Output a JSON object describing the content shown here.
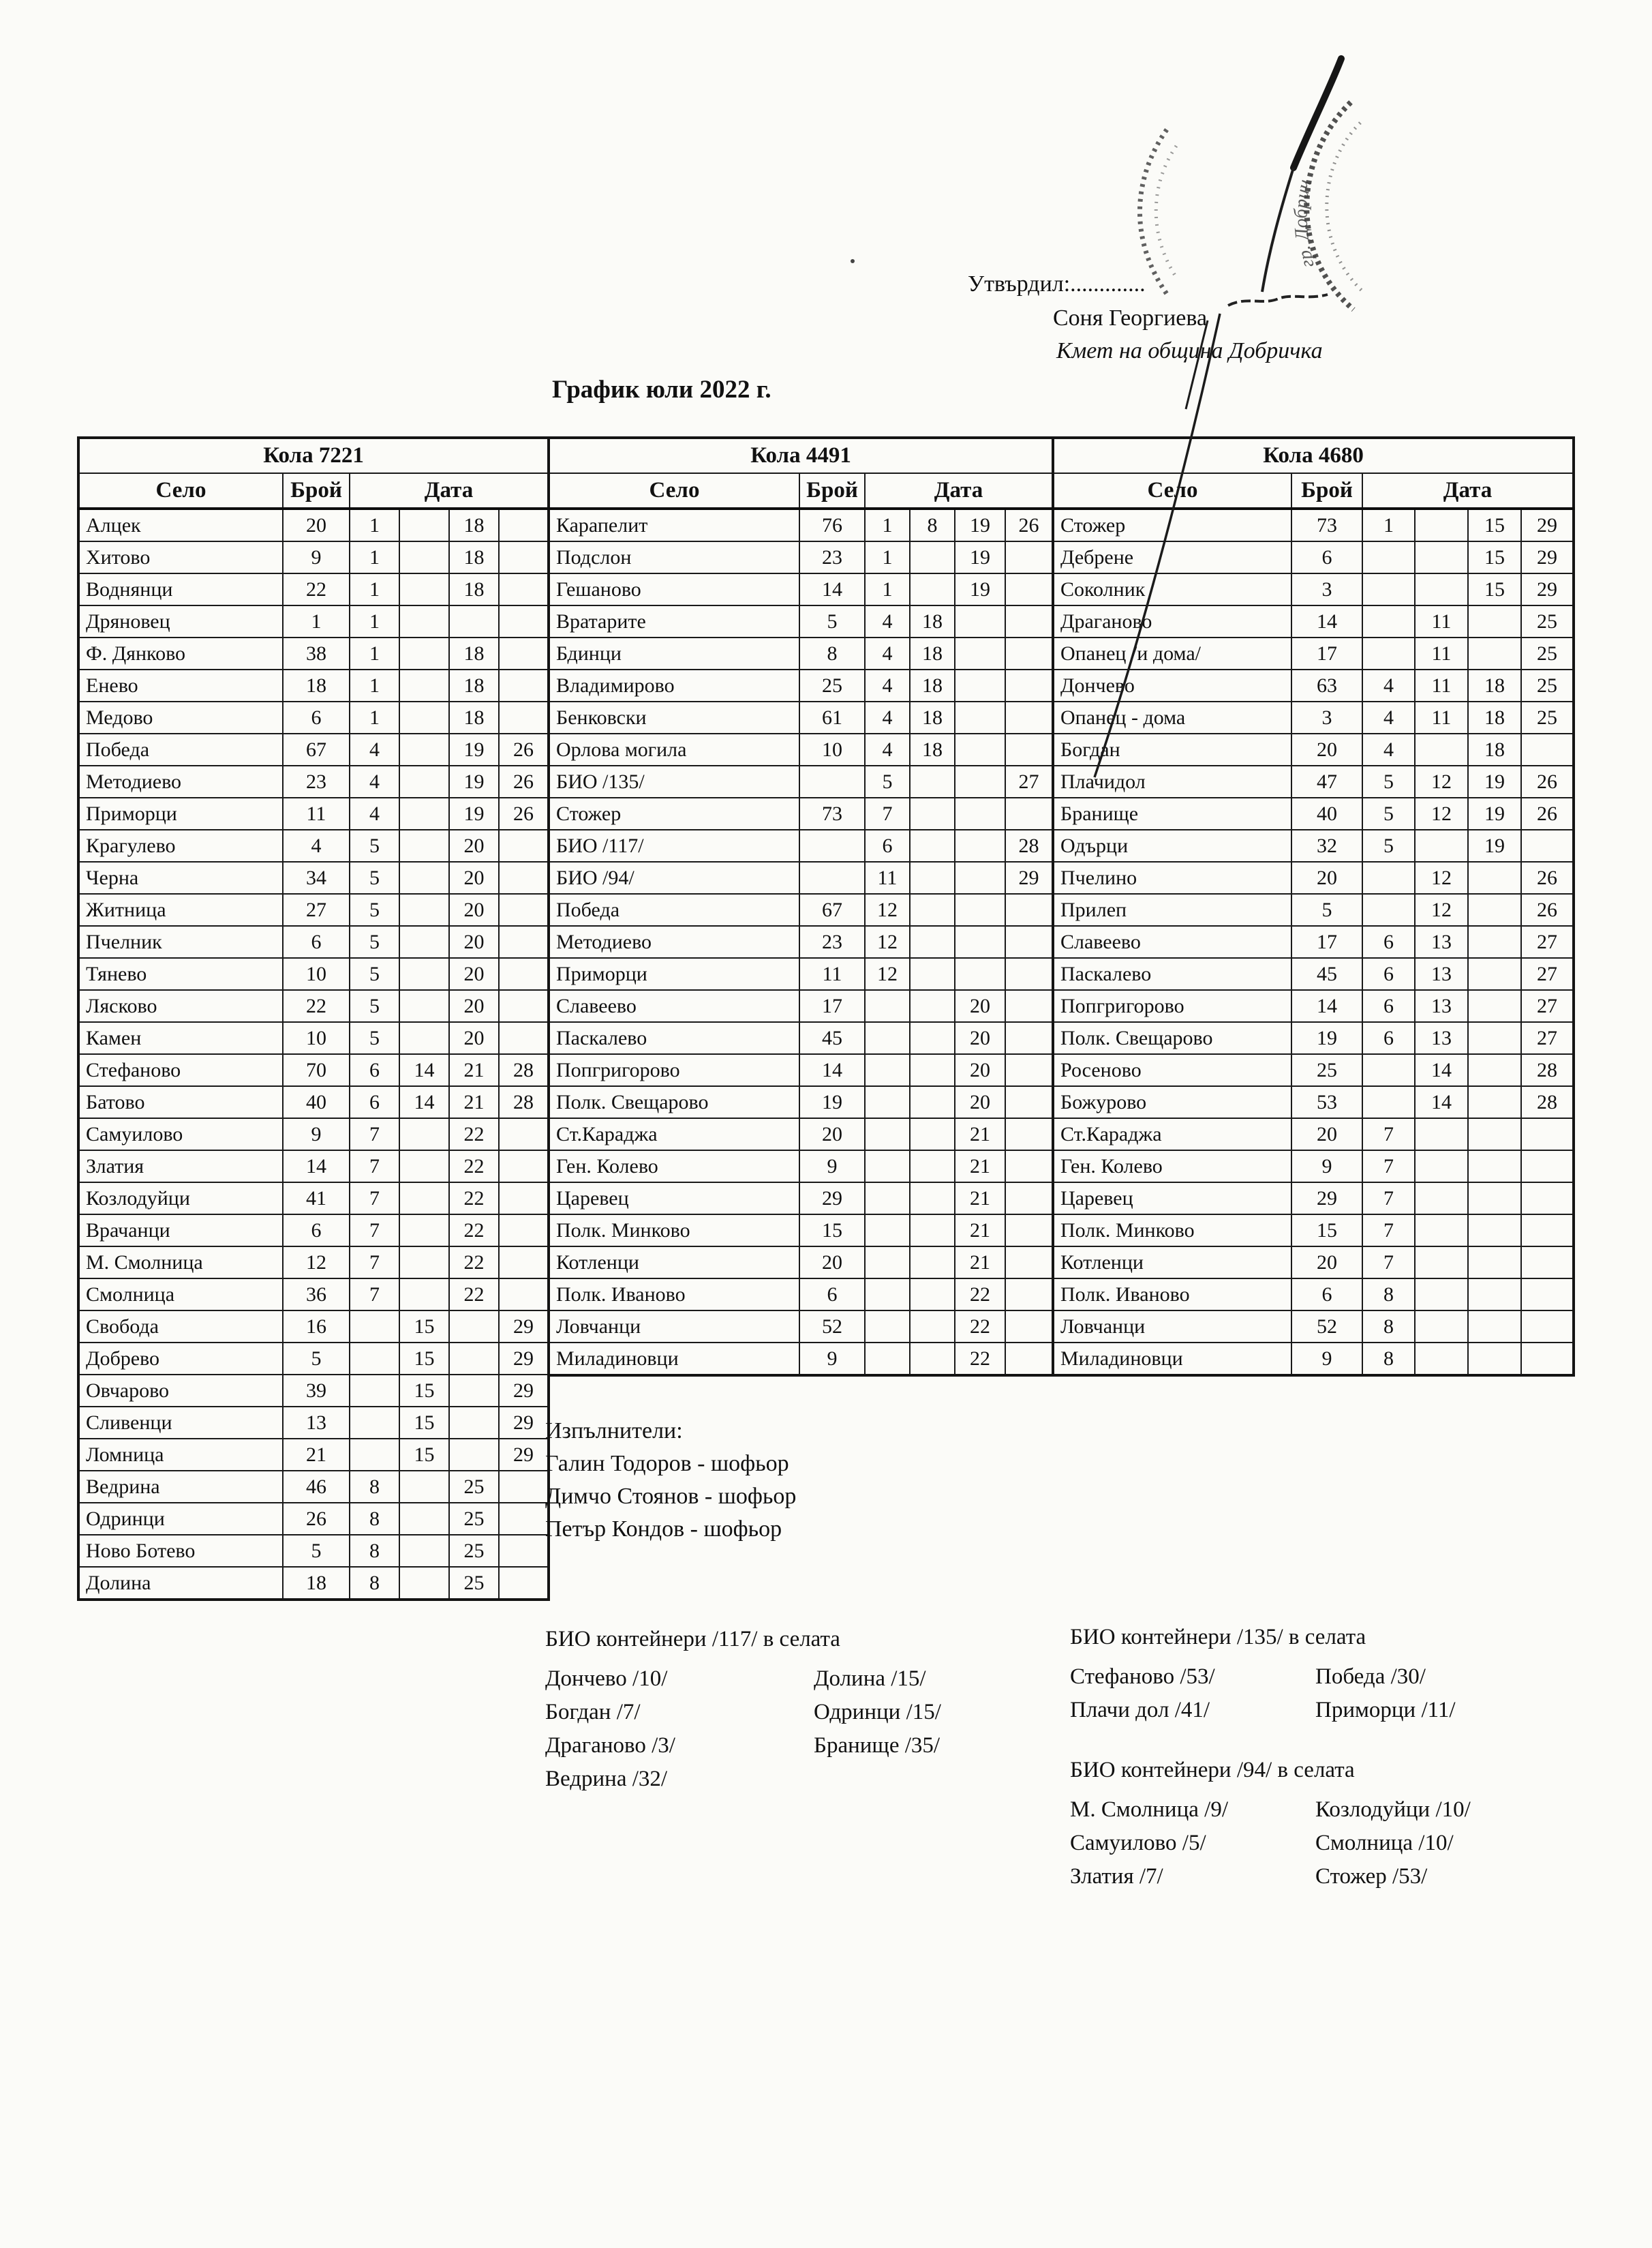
{
  "header": {
    "approved_label": "Утвърдил:.............",
    "approver_name": "Соня Георгиева",
    "approver_title": "Кмет  на община Добричка",
    "stamp_text": "гр. Добрич"
  },
  "title": "График юли 2022 г.",
  "columns": {
    "village": "Село",
    "count": "Брой",
    "date": "Дата"
  },
  "tables": [
    {
      "car": "Кола 7221",
      "rows": [
        [
          "Алцек",
          "20",
          "1",
          "",
          "18",
          ""
        ],
        [
          "Хитово",
          "9",
          "1",
          "",
          "18",
          ""
        ],
        [
          "Воднянци",
          "22",
          "1",
          "",
          "18",
          ""
        ],
        [
          "Дряновец",
          "1",
          "1",
          "",
          "",
          ""
        ],
        [
          "Ф. Дянково",
          "38",
          "1",
          "",
          "18",
          ""
        ],
        [
          "Енево",
          "18",
          "1",
          "",
          "18",
          ""
        ],
        [
          "Медово",
          "6",
          "1",
          "",
          "18",
          ""
        ],
        [
          "Победа",
          "67",
          "4",
          "",
          "19",
          "26"
        ],
        [
          "Методиево",
          "23",
          "4",
          "",
          "19",
          "26"
        ],
        [
          "Приморци",
          "11",
          "4",
          "",
          "19",
          "26"
        ],
        [
          "Крагулево",
          "4",
          "5",
          "",
          "20",
          ""
        ],
        [
          "Черна",
          "34",
          "5",
          "",
          "20",
          ""
        ],
        [
          "Житница",
          "27",
          "5",
          "",
          "20",
          ""
        ],
        [
          "Пчелник",
          "6",
          "5",
          "",
          "20",
          ""
        ],
        [
          "Тянево",
          "10",
          "5",
          "",
          "20",
          ""
        ],
        [
          "Лясково",
          "22",
          "5",
          "",
          "20",
          ""
        ],
        [
          "Камен",
          "10",
          "5",
          "",
          "20",
          ""
        ],
        [
          "Стефаново",
          "70",
          "6",
          "14",
          "21",
          "28"
        ],
        [
          "Батово",
          "40",
          "6",
          "14",
          "21",
          "28"
        ],
        [
          "Самуилово",
          "9",
          "7",
          "",
          "22",
          ""
        ],
        [
          "Златия",
          "14",
          "7",
          "",
          "22",
          ""
        ],
        [
          "Козлодуйци",
          "41",
          "7",
          "",
          "22",
          ""
        ],
        [
          "Врачанци",
          "6",
          "7",
          "",
          "22",
          ""
        ],
        [
          "М. Смолница",
          "12",
          "7",
          "",
          "22",
          ""
        ],
        [
          "Смолница",
          "36",
          "7",
          "",
          "22",
          ""
        ],
        [
          "Свобода",
          "16",
          "",
          "15",
          "",
          "29"
        ],
        [
          "Добрево",
          "5",
          "",
          "15",
          "",
          "29"
        ],
        [
          "Овчарово",
          "39",
          "",
          "15",
          "",
          "29"
        ],
        [
          "Сливенци",
          "13",
          "",
          "15",
          "",
          "29"
        ],
        [
          "Ломница",
          "21",
          "",
          "15",
          "",
          "29"
        ],
        [
          "Ведрина",
          "46",
          "8",
          "",
          "25",
          ""
        ],
        [
          "Одринци",
          "26",
          "8",
          "",
          "25",
          ""
        ],
        [
          "Ново Ботево",
          "5",
          "8",
          "",
          "25",
          ""
        ],
        [
          "Долина",
          "18",
          "8",
          "",
          "25",
          ""
        ]
      ]
    },
    {
      "car": "Кола 4491",
      "rows": [
        [
          "Карапелит",
          "76",
          "1",
          "8",
          "19",
          "26"
        ],
        [
          "Подслон",
          "23",
          "1",
          "",
          "19",
          ""
        ],
        [
          "Гешаново",
          "14",
          "1",
          "",
          "19",
          ""
        ],
        [
          "Вратарите",
          "5",
          "4",
          "18",
          "",
          ""
        ],
        [
          "Бдинци",
          "8",
          "4",
          "18",
          "",
          ""
        ],
        [
          "Владимирово",
          "25",
          "4",
          "18",
          "",
          ""
        ],
        [
          "Бенковски",
          "61",
          "4",
          "18",
          "",
          ""
        ],
        [
          "Орлова могила",
          "10",
          "4",
          "18",
          "",
          ""
        ],
        [
          "БИО /135/",
          "",
          "5",
          "",
          "",
          "27"
        ],
        [
          "Стожер",
          "73",
          "7",
          "",
          "",
          ""
        ],
        [
          "БИО /117/",
          "",
          "6",
          "",
          "",
          "28"
        ],
        [
          "БИО /94/",
          "",
          "11",
          "",
          "",
          "29"
        ],
        [
          "Победа",
          "67",
          "12",
          "",
          "",
          ""
        ],
        [
          "Методиево",
          "23",
          "12",
          "",
          "",
          ""
        ],
        [
          "Приморци",
          "11",
          "12",
          "",
          "",
          ""
        ],
        [
          "Славеево",
          "17",
          "",
          "",
          "20",
          ""
        ],
        [
          "Паскалево",
          "45",
          "",
          "",
          "20",
          ""
        ],
        [
          "Попгригорово",
          "14",
          "",
          "",
          "20",
          ""
        ],
        [
          "Полк. Свещарово",
          "19",
          "",
          "",
          "20",
          ""
        ],
        [
          "Ст.Караджа",
          "20",
          "",
          "",
          "21",
          ""
        ],
        [
          "Ген. Колево",
          "9",
          "",
          "",
          "21",
          ""
        ],
        [
          "Царевец",
          "29",
          "",
          "",
          "21",
          ""
        ],
        [
          "Полк. Минково",
          "15",
          "",
          "",
          "21",
          ""
        ],
        [
          "Котленци",
          "20",
          "",
          "",
          "21",
          ""
        ],
        [
          "Полк. Иваново",
          "6",
          "",
          "",
          "22",
          ""
        ],
        [
          "Ловчанци",
          "52",
          "",
          "",
          "22",
          ""
        ],
        [
          "Миладиновци",
          "9",
          "",
          "",
          "22",
          ""
        ]
      ]
    },
    {
      "car": "Кола 4680",
      "rows": [
        [
          "Стожер",
          "73",
          "1",
          "",
          "15",
          "29"
        ],
        [
          "Дебрене",
          "6",
          "",
          "",
          "15",
          "29"
        ],
        [
          "Соколник",
          "3",
          "",
          "",
          "15",
          "29"
        ],
        [
          "Драганово",
          "14",
          "",
          "11",
          "",
          "25"
        ],
        [
          "Опанец /и дома/",
          "17",
          "",
          "11",
          "",
          "25"
        ],
        [
          "Дончево",
          "63",
          "4",
          "11",
          "18",
          "25"
        ],
        [
          "Опанец - дома",
          "3",
          "4",
          "11",
          "18",
          "25"
        ],
        [
          "Богдан",
          "20",
          "4",
          "",
          "18",
          ""
        ],
        [
          "Плачидол",
          "47",
          "5",
          "12",
          "19",
          "26"
        ],
        [
          "Бранище",
          "40",
          "5",
          "12",
          "19",
          "26"
        ],
        [
          "Одърци",
          "32",
          "5",
          "",
          "19",
          ""
        ],
        [
          "Пчелино",
          "20",
          "",
          "12",
          "",
          "26"
        ],
        [
          "Прилеп",
          "5",
          "",
          "12",
          "",
          "26"
        ],
        [
          "Славеево",
          "17",
          "6",
          "13",
          "",
          "27"
        ],
        [
          "Паскалево",
          "45",
          "6",
          "13",
          "",
          "27"
        ],
        [
          "Попгригорово",
          "14",
          "6",
          "13",
          "",
          "27"
        ],
        [
          "Полк. Свещарово",
          "19",
          "6",
          "13",
          "",
          "27"
        ],
        [
          "Росеново",
          "25",
          "",
          "14",
          "",
          "28"
        ],
        [
          "Божурово",
          "53",
          "",
          "14",
          "",
          "28"
        ],
        [
          "Ст.Караджа",
          "20",
          "7",
          "",
          "",
          ""
        ],
        [
          "Ген. Колево",
          "9",
          "7",
          "",
          "",
          ""
        ],
        [
          "Царевец",
          "29",
          "7",
          "",
          "",
          ""
        ],
        [
          "Полк. Минково",
          "15",
          "7",
          "",
          "",
          ""
        ],
        [
          "Котленци",
          "20",
          "7",
          "",
          "",
          ""
        ],
        [
          "Полк. Иваново",
          "6",
          "8",
          "",
          "",
          ""
        ],
        [
          "Ловчанци",
          "52",
          "8",
          "",
          "",
          ""
        ],
        [
          "Миладиновци",
          "9",
          "8",
          "",
          "",
          ""
        ]
      ]
    }
  ],
  "executors": {
    "label": "Изпълнители:",
    "names": [
      "Галин Тодоров - шофьор",
      "Димчо Стоянов - шофьор",
      "Петър Кондов - шофьор"
    ]
  },
  "bio_sections": [
    {
      "title": "БИО контейнери /117/ в селата",
      "col1": [
        "Дончево /10/",
        "Богдан /7/",
        "Драганово /3/",
        "Ведрина /32/"
      ],
      "col2": [
        "Долина /15/",
        "Одринци /15/",
        "Бранище /35/"
      ]
    },
    {
      "title": "БИО контейнери /135/ в селата",
      "col1": [
        "Стефаново /53/",
        "Плачи дол /41/"
      ],
      "col2": [
        "Победа /30/",
        "Приморци /11/"
      ]
    },
    {
      "title": "БИО контейнери /94/ в селата",
      "col1": [
        "М. Смолница /9/",
        "Самуилово /5/",
        "Златия /7/"
      ],
      "col2": [
        "Козлодуйци /10/",
        "Смолница /10/",
        "Стожер /53/"
      ]
    }
  ]
}
